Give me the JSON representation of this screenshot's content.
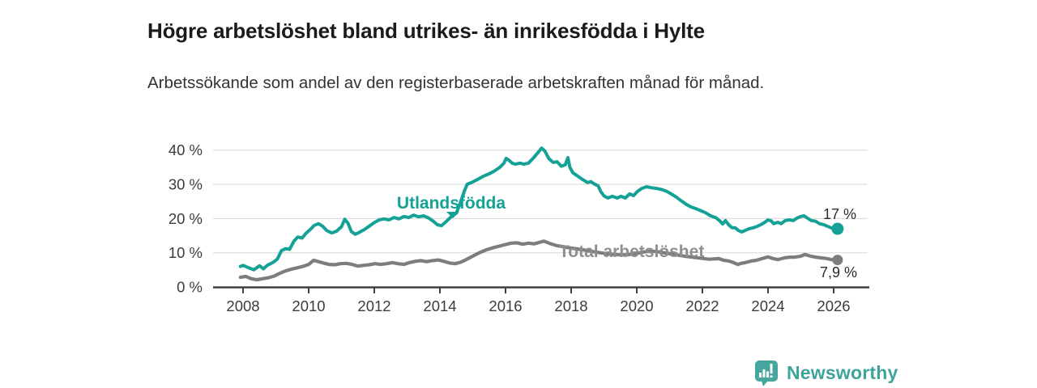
{
  "header": {
    "title": "Högre arbetslöshet bland utrikes- än inrikesfödda i Hylte",
    "subtitle": "Arbetssökande som andel av den registerbaserade arbetskraften månad för månad."
  },
  "chart_data": {
    "type": "line",
    "title": "Högre arbetslöshet bland utrikes- än inrikesfödda i Hylte",
    "subtitle": "Arbetssökande som andel av den registerbaserade arbetskraften månad för månad.",
    "grid": true,
    "grid_color": "#dedede",
    "axis_color": "#404040",
    "x_axis": {
      "range": [
        2007.1,
        2027.1
      ],
      "ticks": [
        {
          "value": 2008,
          "label": "2008"
        },
        {
          "value": 2010,
          "label": "2010"
        },
        {
          "value": 2012,
          "label": "2012"
        },
        {
          "value": 2014,
          "label": "2014"
        },
        {
          "value": 2016,
          "label": "2016"
        },
        {
          "value": 2018,
          "label": "2018"
        },
        {
          "value": 2020,
          "label": "2020"
        },
        {
          "value": 2022,
          "label": "2022"
        },
        {
          "value": 2024,
          "label": "2024"
        },
        {
          "value": 2026,
          "label": "2026"
        }
      ]
    },
    "y_axis": {
      "unit": "%",
      "range": [
        0,
        43
      ],
      "ticks": [
        {
          "value": 0,
          "label": "0 %"
        },
        {
          "value": 10,
          "label": "10 %"
        },
        {
          "value": 20,
          "label": "20 %"
        },
        {
          "value": 30,
          "label": "30 %"
        },
        {
          "value": 40,
          "label": "40 %"
        }
      ]
    },
    "series": [
      {
        "name": "Utlandsfödda",
        "color": "#14a296",
        "label_color": "#14a296",
        "end_label": "17 %",
        "end_value": 17.0,
        "points": [
          [
            2007.92,
            6.0
          ],
          [
            2008.0,
            6.3
          ],
          [
            2008.17,
            5.6
          ],
          [
            2008.33,
            5.0
          ],
          [
            2008.5,
            6.2
          ],
          [
            2008.62,
            5.3
          ],
          [
            2008.75,
            6.4
          ],
          [
            2008.92,
            7.2
          ],
          [
            2009.05,
            8.2
          ],
          [
            2009.17,
            10.6
          ],
          [
            2009.3,
            11.2
          ],
          [
            2009.42,
            11.0
          ],
          [
            2009.55,
            13.4
          ],
          [
            2009.67,
            14.6
          ],
          [
            2009.8,
            14.3
          ],
          [
            2009.92,
            15.7
          ],
          [
            2010.05,
            16.8
          ],
          [
            2010.17,
            18.0
          ],
          [
            2010.3,
            18.5
          ],
          [
            2010.42,
            17.8
          ],
          [
            2010.55,
            16.5
          ],
          [
            2010.7,
            15.8
          ],
          [
            2010.85,
            16.3
          ],
          [
            2011.0,
            17.6
          ],
          [
            2011.1,
            19.8
          ],
          [
            2011.2,
            18.6
          ],
          [
            2011.3,
            16.2
          ],
          [
            2011.42,
            15.4
          ],
          [
            2011.55,
            16.0
          ],
          [
            2011.7,
            16.8
          ],
          [
            2011.85,
            17.8
          ],
          [
            2012.0,
            18.8
          ],
          [
            2012.15,
            19.6
          ],
          [
            2012.3,
            19.9
          ],
          [
            2012.45,
            19.6
          ],
          [
            2012.6,
            20.3
          ],
          [
            2012.75,
            19.9
          ],
          [
            2012.9,
            20.6
          ],
          [
            2013.05,
            20.3
          ],
          [
            2013.2,
            21.0
          ],
          [
            2013.35,
            20.5
          ],
          [
            2013.5,
            20.8
          ],
          [
            2013.65,
            20.2
          ],
          [
            2013.8,
            19.2
          ],
          [
            2013.92,
            18.2
          ],
          [
            2014.05,
            17.9
          ],
          [
            2014.2,
            19.2
          ],
          [
            2014.35,
            20.6
          ],
          [
            2014.5,
            21.6
          ],
          [
            2014.62,
            24.5
          ],
          [
            2014.74,
            27.9
          ],
          [
            2014.83,
            30.0
          ],
          [
            2015.0,
            30.7
          ],
          [
            2015.16,
            31.5
          ],
          [
            2015.33,
            32.4
          ],
          [
            2015.5,
            33.1
          ],
          [
            2015.65,
            33.8
          ],
          [
            2015.83,
            35.0
          ],
          [
            2015.95,
            36.2
          ],
          [
            2016.02,
            37.6
          ],
          [
            2016.1,
            37.1
          ],
          [
            2016.2,
            36.2
          ],
          [
            2016.3,
            35.9
          ],
          [
            2016.44,
            36.2
          ],
          [
            2016.56,
            35.9
          ],
          [
            2016.7,
            36.2
          ],
          [
            2016.85,
            37.7
          ],
          [
            2017.0,
            39.4
          ],
          [
            2017.1,
            40.6
          ],
          [
            2017.2,
            39.7
          ],
          [
            2017.32,
            37.5
          ],
          [
            2017.45,
            36.4
          ],
          [
            2017.57,
            36.6
          ],
          [
            2017.7,
            35.3
          ],
          [
            2017.82,
            35.7
          ],
          [
            2017.9,
            37.8
          ],
          [
            2017.96,
            35.0
          ],
          [
            2018.05,
            33.4
          ],
          [
            2018.2,
            32.4
          ],
          [
            2018.35,
            31.4
          ],
          [
            2018.5,
            30.5
          ],
          [
            2018.6,
            30.8
          ],
          [
            2018.72,
            30.0
          ],
          [
            2018.82,
            29.6
          ],
          [
            2018.9,
            27.9
          ],
          [
            2019.0,
            26.6
          ],
          [
            2019.12,
            26.0
          ],
          [
            2019.25,
            26.5
          ],
          [
            2019.4,
            26.0
          ],
          [
            2019.52,
            26.5
          ],
          [
            2019.65,
            26.0
          ],
          [
            2019.78,
            27.2
          ],
          [
            2019.9,
            26.7
          ],
          [
            2020.02,
            27.9
          ],
          [
            2020.15,
            28.8
          ],
          [
            2020.3,
            29.3
          ],
          [
            2020.45,
            29.0
          ],
          [
            2020.6,
            28.8
          ],
          [
            2020.75,
            28.5
          ],
          [
            2020.9,
            28.0
          ],
          [
            2021.05,
            27.2
          ],
          [
            2021.2,
            26.3
          ],
          [
            2021.35,
            25.2
          ],
          [
            2021.5,
            24.2
          ],
          [
            2021.65,
            23.4
          ],
          [
            2021.8,
            22.9
          ],
          [
            2021.95,
            22.3
          ],
          [
            2022.1,
            21.7
          ],
          [
            2022.25,
            20.8
          ],
          [
            2022.4,
            20.3
          ],
          [
            2022.52,
            19.4
          ],
          [
            2022.62,
            18.4
          ],
          [
            2022.7,
            19.4
          ],
          [
            2022.8,
            18.2
          ],
          [
            2022.9,
            17.3
          ],
          [
            2023.0,
            17.3
          ],
          [
            2023.1,
            16.5
          ],
          [
            2023.2,
            16.1
          ],
          [
            2023.3,
            16.5
          ],
          [
            2023.42,
            17.0
          ],
          [
            2023.55,
            17.3
          ],
          [
            2023.67,
            17.7
          ],
          [
            2023.8,
            18.3
          ],
          [
            2023.9,
            18.9
          ],
          [
            2024.0,
            19.6
          ],
          [
            2024.1,
            19.3
          ],
          [
            2024.17,
            18.5
          ],
          [
            2024.3,
            18.9
          ],
          [
            2024.4,
            18.5
          ],
          [
            2024.52,
            19.4
          ],
          [
            2024.65,
            19.6
          ],
          [
            2024.77,
            19.4
          ],
          [
            2024.88,
            20.1
          ],
          [
            2025.0,
            20.6
          ],
          [
            2025.1,
            20.8
          ],
          [
            2025.22,
            20.0
          ],
          [
            2025.32,
            19.4
          ],
          [
            2025.45,
            19.2
          ],
          [
            2025.57,
            18.5
          ],
          [
            2025.7,
            18.2
          ],
          [
            2025.82,
            17.7
          ],
          [
            2025.92,
            17.3
          ],
          [
            2026.02,
            17.1
          ],
          [
            2026.12,
            17.0
          ]
        ]
      },
      {
        "name": "Total arbetslöshet",
        "color": "#7d7d7d",
        "label_color": "#8e8e8e",
        "end_label": "7,9 %",
        "end_value": 7.9,
        "points": [
          [
            2007.92,
            2.8
          ],
          [
            2008.08,
            3.1
          ],
          [
            2008.25,
            2.4
          ],
          [
            2008.42,
            2.1
          ],
          [
            2008.6,
            2.4
          ],
          [
            2008.77,
            2.7
          ],
          [
            2008.95,
            3.2
          ],
          [
            2009.12,
            4.0
          ],
          [
            2009.3,
            4.7
          ],
          [
            2009.47,
            5.2
          ],
          [
            2009.65,
            5.6
          ],
          [
            2009.82,
            6.0
          ],
          [
            2010.0,
            6.6
          ],
          [
            2010.15,
            7.8
          ],
          [
            2010.3,
            7.4
          ],
          [
            2010.45,
            7.0
          ],
          [
            2010.62,
            6.6
          ],
          [
            2010.8,
            6.5
          ],
          [
            2010.97,
            6.8
          ],
          [
            2011.15,
            6.9
          ],
          [
            2011.32,
            6.6
          ],
          [
            2011.5,
            6.1
          ],
          [
            2011.67,
            6.3
          ],
          [
            2011.85,
            6.5
          ],
          [
            2012.02,
            6.8
          ],
          [
            2012.2,
            6.6
          ],
          [
            2012.37,
            6.8
          ],
          [
            2012.55,
            7.1
          ],
          [
            2012.72,
            6.8
          ],
          [
            2012.9,
            6.6
          ],
          [
            2013.07,
            7.1
          ],
          [
            2013.25,
            7.5
          ],
          [
            2013.42,
            7.7
          ],
          [
            2013.6,
            7.4
          ],
          [
            2013.77,
            7.7
          ],
          [
            2013.95,
            7.9
          ],
          [
            2014.12,
            7.5
          ],
          [
            2014.3,
            7.0
          ],
          [
            2014.47,
            6.8
          ],
          [
            2014.65,
            7.3
          ],
          [
            2014.82,
            8.1
          ],
          [
            2015.0,
            9.0
          ],
          [
            2015.2,
            10.0
          ],
          [
            2015.4,
            10.8
          ],
          [
            2015.6,
            11.4
          ],
          [
            2015.8,
            11.9
          ],
          [
            2016.0,
            12.4
          ],
          [
            2016.17,
            12.8
          ],
          [
            2016.35,
            12.9
          ],
          [
            2016.52,
            12.5
          ],
          [
            2016.7,
            12.8
          ],
          [
            2016.87,
            12.6
          ],
          [
            2017.05,
            13.1
          ],
          [
            2017.17,
            13.4
          ],
          [
            2017.35,
            12.7
          ],
          [
            2017.55,
            12.1
          ],
          [
            2017.75,
            11.8
          ],
          [
            2017.95,
            11.4
          ],
          [
            2018.2,
            11.1
          ],
          [
            2018.45,
            10.7
          ],
          [
            2018.7,
            10.3
          ],
          [
            2018.95,
            9.9
          ],
          [
            2019.2,
            9.6
          ],
          [
            2019.45,
            9.4
          ],
          [
            2019.7,
            9.4
          ],
          [
            2019.95,
            9.7
          ],
          [
            2020.2,
            10.2
          ],
          [
            2020.45,
            10.5
          ],
          [
            2020.7,
            10.2
          ],
          [
            2020.95,
            9.8
          ],
          [
            2021.2,
            9.4
          ],
          [
            2021.45,
            9.0
          ],
          [
            2021.7,
            8.7
          ],
          [
            2021.95,
            8.4
          ],
          [
            2022.2,
            8.1
          ],
          [
            2022.35,
            8.2
          ],
          [
            2022.5,
            8.3
          ],
          [
            2022.65,
            7.8
          ],
          [
            2022.8,
            7.6
          ],
          [
            2022.95,
            7.1
          ],
          [
            2023.08,
            6.6
          ],
          [
            2023.18,
            6.9
          ],
          [
            2023.3,
            7.1
          ],
          [
            2023.5,
            7.6
          ],
          [
            2023.65,
            7.8
          ],
          [
            2023.82,
            8.3
          ],
          [
            2024.0,
            8.8
          ],
          [
            2024.15,
            8.3
          ],
          [
            2024.3,
            8.0
          ],
          [
            2024.5,
            8.5
          ],
          [
            2024.65,
            8.7
          ],
          [
            2024.8,
            8.7
          ],
          [
            2025.0,
            9.0
          ],
          [
            2025.12,
            9.5
          ],
          [
            2025.3,
            9.0
          ],
          [
            2025.47,
            8.7
          ],
          [
            2025.62,
            8.5
          ],
          [
            2025.8,
            8.3
          ],
          [
            2025.92,
            8.0
          ],
          [
            2026.12,
            7.9
          ]
        ]
      }
    ]
  },
  "footer": {
    "brand": "Newsworthy",
    "brand_color": "#3fa39a",
    "logo_icon": "newsworthy-bar-chart-speech-bubble-icon"
  }
}
